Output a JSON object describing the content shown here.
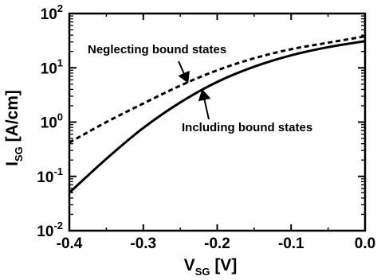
{
  "chart_data": {
    "type": "line",
    "xlabel_main": "V",
    "xlabel_sub": "SG",
    "xlabel_unit": " [V]",
    "ylabel_main": "I",
    "ylabel_sub": "SG",
    "ylabel_unit": " [A/cm]",
    "xlim": [
      -0.4,
      0.0
    ],
    "ylim": [
      0.01,
      100
    ],
    "yscale": "log",
    "x_ticks": [
      -0.4,
      -0.3,
      -0.2,
      -0.1,
      0.0
    ],
    "x_tick_labels": [
      "-0.4",
      "-0.3",
      "-0.2",
      "-0.1",
      "0.0"
    ],
    "y_tick_labels": [
      {
        "base": "10",
        "exp": "-2"
      },
      {
        "base": "10",
        "exp": "-1"
      },
      {
        "base": "10",
        "exp": "0"
      },
      {
        "base": "10",
        "exp": "1"
      },
      {
        "base": "10",
        "exp": "2"
      }
    ],
    "grid": false,
    "series": [
      {
        "name": "Neglecting bound states",
        "style": "dashed",
        "color": "#000000",
        "x": [
          -0.4,
          -0.35,
          -0.3,
          -0.25,
          -0.2,
          -0.15,
          -0.1,
          -0.05,
          0.0
        ],
        "y": [
          0.42,
          1.0,
          2.2,
          4.7,
          9.0,
          15.0,
          22.0,
          29.0,
          38.0
        ]
      },
      {
        "name": "Including bound states",
        "style": "solid",
        "color": "#000000",
        "x": [
          -0.4,
          -0.35,
          -0.3,
          -0.25,
          -0.2,
          -0.15,
          -0.1,
          -0.05,
          0.0
        ],
        "y": [
          0.05,
          0.21,
          0.78,
          2.3,
          5.5,
          10.5,
          17.0,
          24.0,
          31.0
        ]
      }
    ],
    "annotations": [
      {
        "text": "Neglecting bound states",
        "arrow_to": {
          "x": -0.24,
          "y": 5.5
        }
      },
      {
        "text": "Including bound states",
        "arrow_to": {
          "x": -0.22,
          "y": 3.8
        }
      }
    ]
  }
}
